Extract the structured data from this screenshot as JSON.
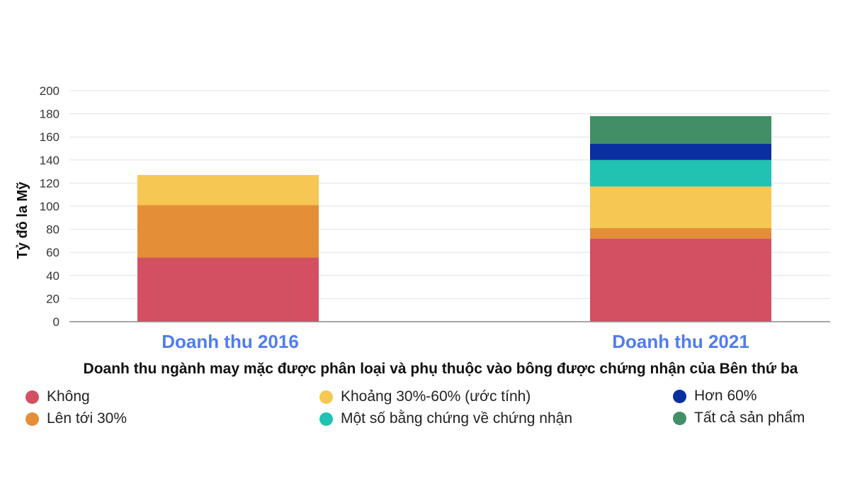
{
  "chart_data": {
    "type": "bar",
    "stacked": true,
    "ylabel": "Tỷ đô la Mỹ",
    "xlabel": "Doanh thu ngành may mặc được phân loại và phụ thuộc vào bông được chứng nhận của Bên thứ ba",
    "ylim": [
      0,
      200
    ],
    "yticks": [
      0,
      20,
      40,
      60,
      80,
      100,
      120,
      140,
      160,
      180,
      200
    ],
    "grid": true,
    "legend_position": "bottom",
    "categories": [
      "Doanh thu 2016",
      "Doanh thu 2021"
    ],
    "series": [
      {
        "name": "Không",
        "color": "#d35063",
        "values": [
          55.5,
          72
        ]
      },
      {
        "name": "Lên tới 30%",
        "color": "#e48e38",
        "values": [
          45.5,
          9
        ]
      },
      {
        "name": "Khoảng 30%-60% (ước tính)",
        "color": "#f6c752",
        "values": [
          26,
          36
        ]
      },
      {
        "name": "Một số bằng chứng về chứng nhận",
        "color": "#21c2b2",
        "values": [
          0,
          23
        ]
      },
      {
        "name": "Hơn 60%",
        "color": "#0a2fa0",
        "values": [
          0,
          14
        ]
      },
      {
        "name": "Tất cả sản phẩm",
        "color": "#428f67",
        "values": [
          0,
          24
        ]
      }
    ]
  }
}
